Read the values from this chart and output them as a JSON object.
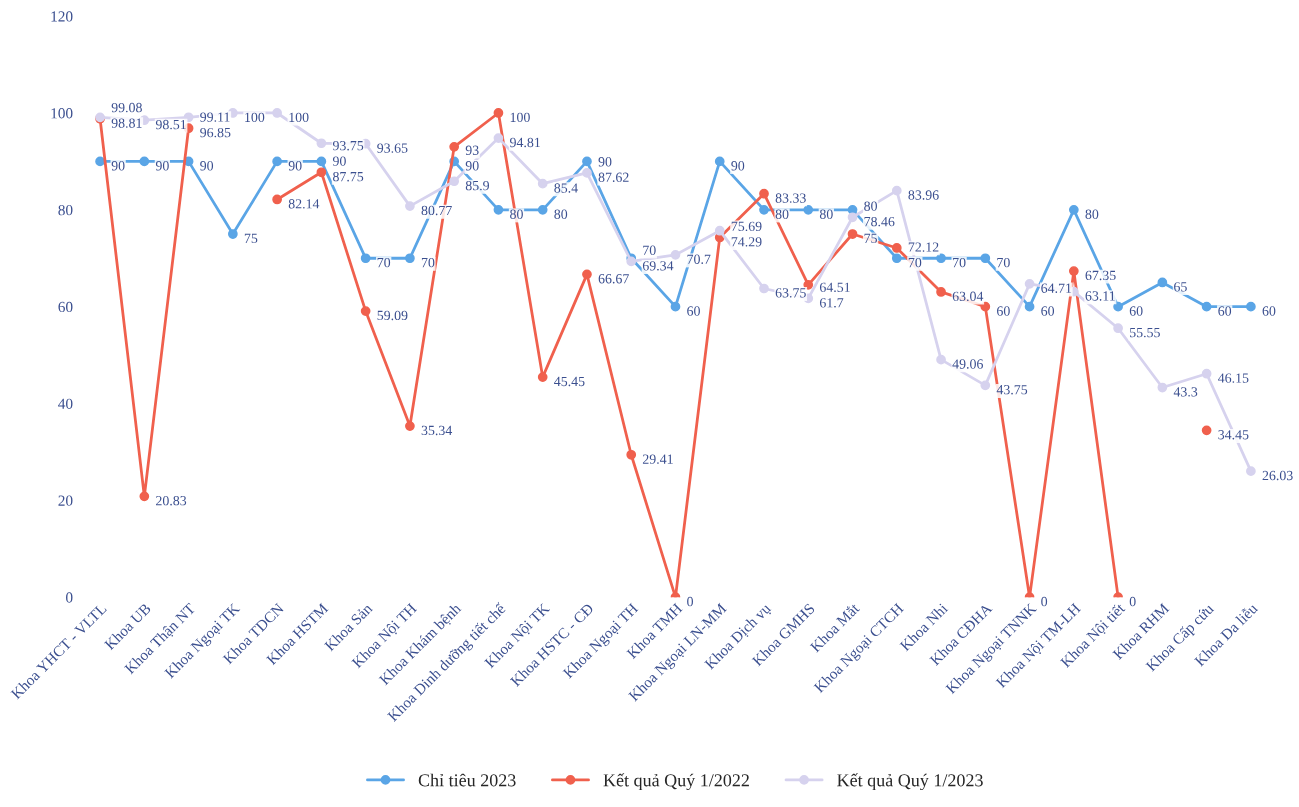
{
  "chart_data": {
    "type": "line",
    "categories": [
      "Khoa YHCT - VLTL",
      "Khoa UB",
      "Khoa Thận NT",
      "Khoa Ngoại TK",
      "Khoa TDCN",
      "Khoa HSTM",
      "Khoa Sản",
      "Khoa Nội TH",
      "Khoa Khám bệnh",
      "Khoa Dinh dưỡng tiết chế",
      "Khoa Nội TK",
      "Khoa HSTC - CĐ",
      "Khoa Ngoại TH",
      "Khoa TMH",
      "Khoa Ngoại LN-MM",
      "Khoa Dịch vụ",
      "Khoa GMHS",
      "Khoa Mắt",
      "Khoa Ngoại CTCH",
      "Khoa Nhi",
      "Khoa CĐHA",
      "Khoa Ngoại TNNK",
      "Khoa Nội TM-LH",
      "Khoa Nội tiết",
      "Khoa RHM",
      "Khoa Cấp cứu",
      "Khoa Da liễu"
    ],
    "series": [
      {
        "name": "Chỉ tiêu 2023",
        "color": "#5aa5e6",
        "values": [
          90,
          90,
          90,
          75,
          90,
          90,
          70,
          70,
          90,
          80,
          80,
          90,
          70,
          60,
          90,
          80,
          80,
          80,
          70,
          70,
          70,
          60,
          80,
          60,
          65,
          60,
          60
        ]
      },
      {
        "name": "Kết quả Quý 1/2022",
        "color": "#f0604d",
        "values": [
          98.81,
          20.83,
          96.85,
          null,
          82.14,
          87.75,
          59.09,
          35.34,
          93,
          100,
          45.45,
          66.67,
          29.41,
          0,
          74.29,
          83.33,
          64.51,
          75,
          72.12,
          63.04,
          60,
          0,
          67.35,
          0,
          null,
          34.45,
          null
        ]
      },
      {
        "name": "Kết quả Quý 1/2023",
        "color": "#d6d2ee",
        "values": [
          99.08,
          98.51,
          99.11,
          100,
          100,
          93.75,
          93.65,
          80.77,
          85.9,
          94.81,
          85.4,
          87.62,
          69.34,
          70.7,
          75.69,
          63.75,
          61.7,
          78.46,
          83.96,
          49.06,
          43.75,
          64.71,
          63.11,
          55.55,
          43.3,
          46.15,
          26.03
        ]
      }
    ],
    "ylim": [
      0,
      120
    ],
    "yticks": [
      0,
      20,
      40,
      60,
      80,
      100,
      120
    ],
    "grid": false,
    "legend": "bottom",
    "marker": "circle",
    "line_style": "solid",
    "data_labels": true
  }
}
